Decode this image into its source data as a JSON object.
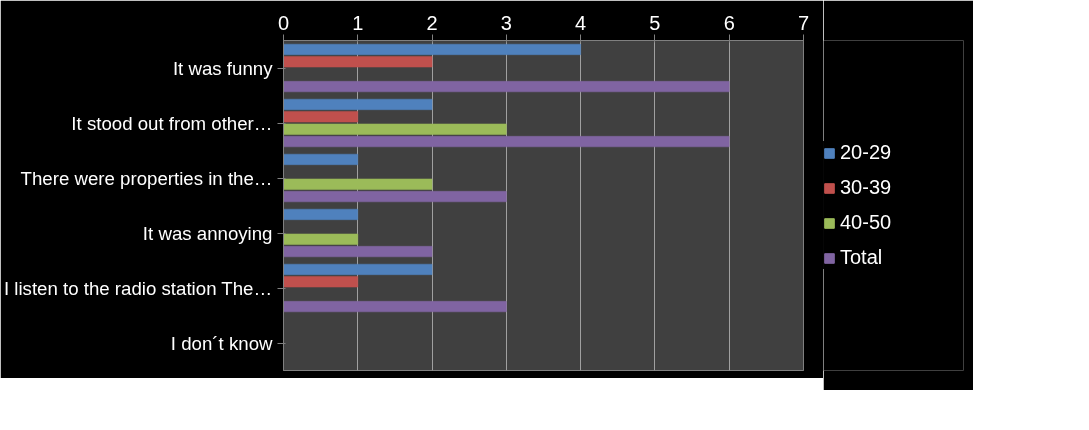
{
  "chart_data": {
    "type": "bar",
    "orientation": "horizontal",
    "categories": [
      "It was funny",
      "It stood out from other…",
      "There were properties in the…",
      "It was annoying",
      "I listen to the radio station The…",
      "I don´t know"
    ],
    "series": [
      {
        "name": "20-29",
        "color": "#4f81bd",
        "values": [
          4,
          2,
          1,
          1,
          2,
          0
        ]
      },
      {
        "name": "30-39",
        "color": "#c0504d",
        "values": [
          2,
          1,
          0,
          0,
          1,
          0
        ]
      },
      {
        "name": "40-50",
        "color": "#9bbb59",
        "values": [
          0,
          3,
          2,
          1,
          0,
          0
        ]
      },
      {
        "name": "Total",
        "color": "#8064a2",
        "values": [
          6,
          6,
          3,
          2,
          3,
          0
        ]
      }
    ],
    "xlim": [
      0,
      7
    ],
    "xticks": [
      0,
      1,
      2,
      3,
      4,
      5,
      6,
      7
    ],
    "grid": "x",
    "legend": "right"
  }
}
